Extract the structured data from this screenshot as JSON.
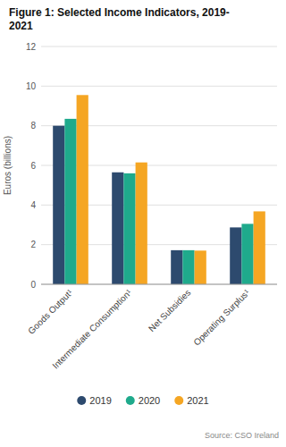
{
  "chart_data": {
    "type": "bar",
    "title": "Figure 1: Selected Income Indicators, 2019-\n2021",
    "categories": [
      "Goods Output¹",
      "Intermediate Consumption¹",
      "Net Subsidies",
      "Operating Surplus¹"
    ],
    "series": [
      {
        "name": "2019",
        "color": "#2d4a6e",
        "values": [
          8.0,
          5.65,
          1.72,
          2.87
        ]
      },
      {
        "name": "2020",
        "color": "#1faa8c",
        "values": [
          8.35,
          5.6,
          1.72,
          3.05
        ]
      },
      {
        "name": "2021",
        "color": "#f5a623",
        "values": [
          9.55,
          6.15,
          1.7,
          3.68
        ]
      }
    ],
    "ylabel": "Euros (billions)",
    "ylim": [
      0,
      12
    ],
    "yticks": [
      0,
      2,
      4,
      6,
      8,
      10,
      12
    ],
    "grid": true,
    "legend": "bottom",
    "source": "Source: CSO Ireland"
  }
}
